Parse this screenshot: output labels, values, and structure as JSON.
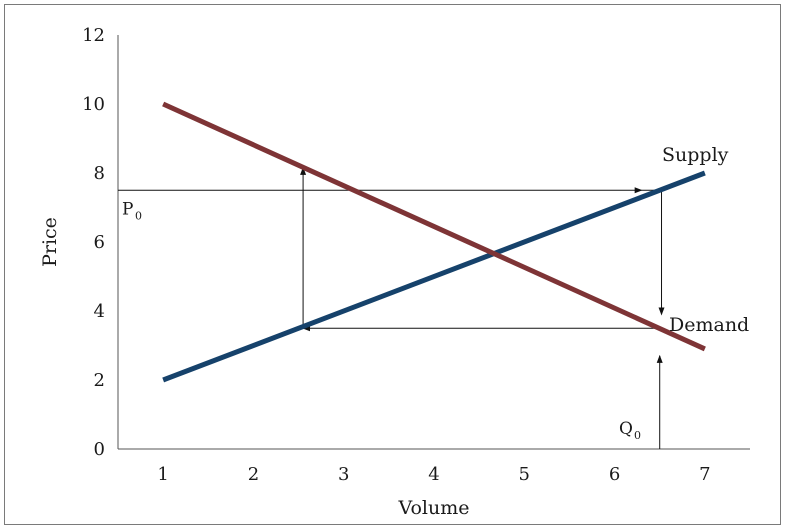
{
  "chart_data": {
    "type": "line",
    "title": "",
    "xlabel": "Volume",
    "ylabel": "Price",
    "xlim": [
      0.5,
      7.5
    ],
    "ylim": [
      0,
      12
    ],
    "x_ticks": [
      1,
      2,
      3,
      4,
      5,
      6,
      7
    ],
    "y_ticks": [
      0,
      2,
      4,
      6,
      8,
      10,
      12
    ],
    "grid": false,
    "series": [
      {
        "name": "Supply",
        "color": "#16426b",
        "x": [
          1,
          7
        ],
        "y": [
          2,
          8
        ]
      },
      {
        "name": "Demand",
        "color": "#7e3436",
        "x": [
          1,
          7
        ],
        "y": [
          10,
          2.9
        ]
      }
    ],
    "annotations": {
      "p0_label": "P",
      "p0_sub": "0",
      "q0_label": "Q",
      "q0_sub": "0",
      "p0_price": 7.5,
      "q0_volume": 6.5,
      "arrow_up_from": {
        "x": 6.5,
        "y": 2.7
      },
      "arrow_up_to": {
        "x": 6.5,
        "y": 2.35
      },
      "cobweb_path": [
        {
          "x": 0.5,
          "y": 7.5
        },
        {
          "x": 6.3,
          "y": 7.5
        },
        {
          "x": 6.52,
          "y": 7.5
        },
        {
          "x": 6.52,
          "y": 3.9
        },
        {
          "x": 6.52,
          "y": 3.5
        },
        {
          "x": 2.55,
          "y": 3.5
        },
        {
          "x": 2.55,
          "y": 8.15
        }
      ]
    }
  }
}
